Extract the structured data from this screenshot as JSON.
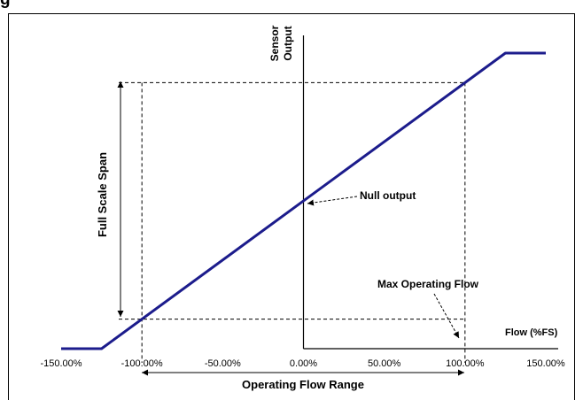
{
  "title_fragment": "g",
  "chart_data": {
    "type": "line",
    "title": "",
    "xlabel": "Flow (%FS)",
    "ylabel": "Sensor Output",
    "x_ticks": [
      "-150.00%",
      "-100.00%",
      "-50.00%",
      "0.00%",
      "50.00%",
      "100.00%",
      "150.00%"
    ],
    "xlim": [
      -150,
      150
    ],
    "grid": false,
    "legend": "none",
    "series": [
      {
        "color": "#1c1c8c",
        "x": [
          -150,
          -125,
          125,
          150
        ],
        "y": [
          0,
          0,
          100,
          100
        ]
      }
    ],
    "reference_lines": {
      "operating_flow_min": -100,
      "operating_flow_max": 100,
      "output_at_min_flow": 10,
      "output_at_max_flow": 90
    },
    "annotations": {
      "null_output": "Null output",
      "max_operating_flow": "Max Operating Flow",
      "full_scale_span": "Full Scale Span",
      "operating_flow_range": "Operating Flow Range"
    }
  }
}
